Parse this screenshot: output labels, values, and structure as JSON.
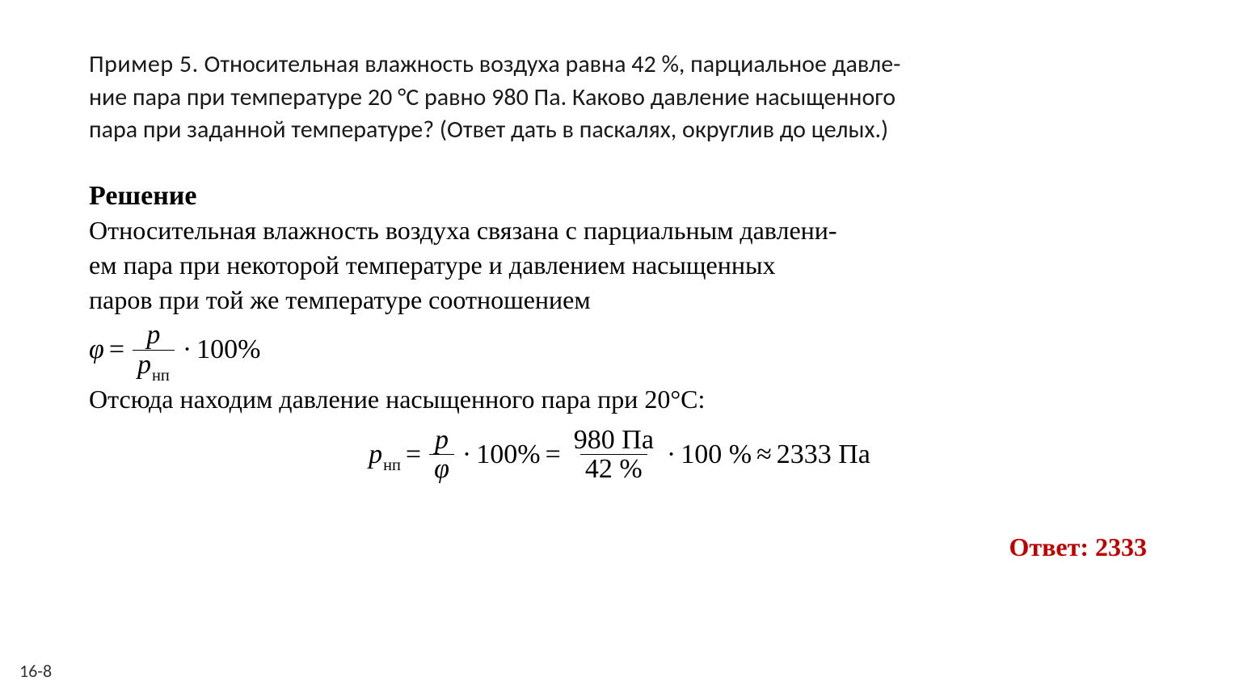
{
  "problem": {
    "lead": "Пример 5.",
    "text_line1": "Относительная влажность воздуха равна 42 %, парциальное давле-",
    "text_line2": "ние пара при температуре 20 °С равно 980 Па. Каково давление насыщенного",
    "text_line3": "пара при заданной температуре? (Ответ дать в паскалях, округлив до целых.)"
  },
  "solution": {
    "heading": "Решение",
    "p1_line1": "Относительная влажность воздуха связана с парциальным давлени-",
    "p1_line2": "ем пара при некоторой температуре и давлением насыщенных",
    "p1_line3": "паров при той же температуре соотношением",
    "eq1": {
      "phi": "φ",
      "eq": "=",
      "num": "p",
      "den_p": "p",
      "den_sub": "нп",
      "dot": "·",
      "hundred": "100%"
    },
    "p2": "Отсюда находим давление насыщенного пара при 20°С:",
    "eq2": {
      "lhs_p": "p",
      "lhs_sub": "нп",
      "eq": "=",
      "frac1_num": "p",
      "frac1_den": "φ",
      "dot": "·",
      "hundred1": "100%",
      "eq2": "=",
      "frac2_num": "980 Па",
      "frac2_den": "42 %",
      "hundred2": "100 %",
      "approx": "≈",
      "result": "2333 Па"
    }
  },
  "answer": {
    "label": "Ответ:",
    "value": "2333"
  },
  "footer": "16-8",
  "colors": {
    "text": "#000000",
    "answer": "#c00000",
    "background": "#ffffff"
  },
  "fonts": {
    "problem": "Calibri",
    "solution": "Times New Roman",
    "math": "Cambria Math"
  }
}
